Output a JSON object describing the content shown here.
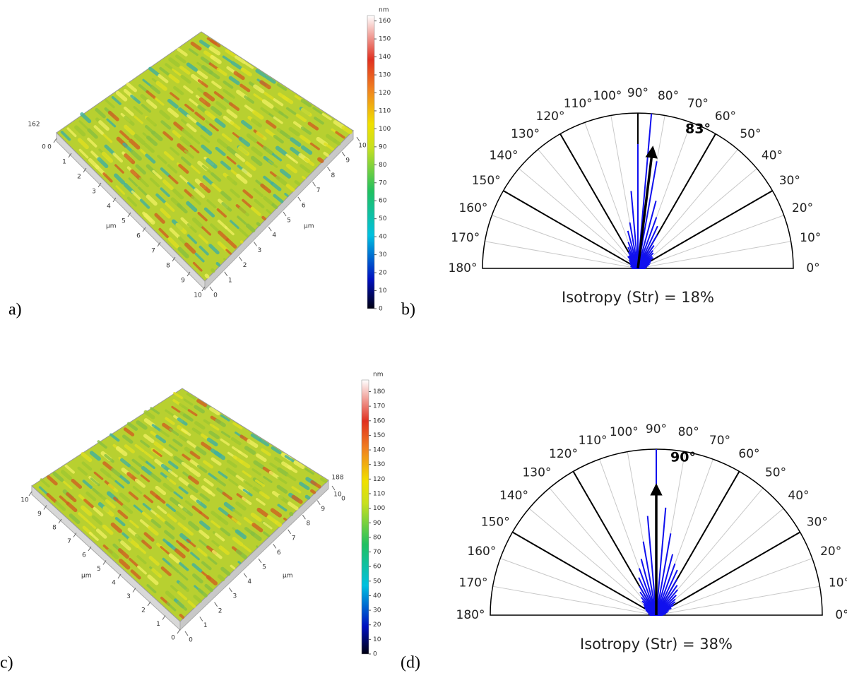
{
  "chart_data": [
    {
      "type": "surface",
      "panel_label": "a)",
      "xlabel": "µm",
      "ylabel": "µm",
      "xticks": [
        0,
        1,
        2,
        3,
        4,
        5,
        6,
        7,
        8,
        9,
        10
      ],
      "yticks": [
        0,
        1,
        2,
        3,
        4,
        5,
        6,
        7,
        8,
        9,
        10
      ],
      "zticks": [
        0,
        162
      ],
      "colorbar_label": "nm",
      "colorbar_lim": [
        0,
        163
      ],
      "colorbar_ticks": [
        0,
        10,
        20,
        30,
        40,
        50,
        60,
        70,
        80,
        90,
        100,
        110,
        120,
        130,
        140,
        150,
        160
      ]
    },
    {
      "type": "polar",
      "panel_label": "b)",
      "color": "#1010ee",
      "thetalim": [
        0,
        180
      ],
      "rlim": [
        0,
        1
      ],
      "thetaticks": [
        {
          "value": 0,
          "label": "0°"
        },
        {
          "value": 10,
          "label": "10°"
        },
        {
          "value": 20,
          "label": "20°"
        },
        {
          "value": 30,
          "label": "30°"
        },
        {
          "value": 40,
          "label": "40°"
        },
        {
          "value": 50,
          "label": "50°"
        },
        {
          "value": 60,
          "label": "60°"
        },
        {
          "value": 70,
          "label": "70°"
        },
        {
          "value": 80,
          "label": "80°"
        },
        {
          "value": 90,
          "label": "90°"
        },
        {
          "value": 100,
          "label": "100°"
        },
        {
          "value": 110,
          "label": "110°"
        },
        {
          "value": 120,
          "label": "120°"
        },
        {
          "value": 130,
          "label": "130°"
        },
        {
          "value": 140,
          "label": "140°"
        },
        {
          "value": 150,
          "label": "150°"
        },
        {
          "value": 160,
          "label": "160°"
        },
        {
          "value": 170,
          "label": "170°"
        },
        {
          "value": 180,
          "label": "180°"
        }
      ],
      "angles": [
        0,
        5,
        10,
        15,
        20,
        25,
        30,
        35,
        40,
        45,
        50,
        55,
        60,
        65,
        70,
        75,
        80,
        85,
        90,
        95,
        100,
        105,
        110,
        115,
        120,
        125,
        130,
        135,
        140,
        145,
        150,
        155,
        160,
        165,
        170,
        175,
        180
      ],
      "values": [
        0.05,
        0.05,
        0.06,
        0.07,
        0.08,
        0.09,
        0.1,
        0.12,
        0.12,
        0.14,
        0.15,
        0.18,
        0.25,
        0.3,
        0.35,
        0.45,
        0.7,
        1.0,
        0.8,
        0.5,
        0.3,
        0.25,
        0.18,
        0.15,
        0.12,
        0.1,
        0.1,
        0.08,
        0.07,
        0.06,
        0.06,
        0.05,
        0.05,
        0.05,
        0.04,
        0.04,
        0.04
      ],
      "annotation": {
        "value": 83,
        "label": "83°"
      },
      "caption": "Isotropy (Str) = 18%"
    },
    {
      "type": "surface",
      "panel_label": "c)",
      "xlabel": "µm",
      "ylabel": "µm",
      "xticks": [
        0,
        1,
        2,
        3,
        4,
        5,
        6,
        7,
        8,
        9,
        10
      ],
      "yticks": [
        0,
        1,
        2,
        3,
        4,
        5,
        6,
        7,
        8,
        9,
        10
      ],
      "zticks": [
        0,
        188
      ],
      "colorbar_label": "nm",
      "colorbar_lim": [
        0,
        188
      ],
      "colorbar_ticks": [
        0,
        10,
        20,
        30,
        40,
        50,
        60,
        70,
        80,
        90,
        100,
        110,
        120,
        130,
        140,
        150,
        160,
        170,
        180
      ]
    },
    {
      "type": "polar",
      "panel_label": "(d)",
      "color": "#1010ee",
      "thetalim": [
        0,
        180
      ],
      "rlim": [
        0,
        1
      ],
      "thetaticks": [
        {
          "value": 0,
          "label": "0°"
        },
        {
          "value": 10,
          "label": "10°"
        },
        {
          "value": 20,
          "label": "20°"
        },
        {
          "value": 30,
          "label": "30°"
        },
        {
          "value": 40,
          "label": "40°"
        },
        {
          "value": 50,
          "label": "50°"
        },
        {
          "value": 60,
          "label": "60°"
        },
        {
          "value": 70,
          "label": "70°"
        },
        {
          "value": 80,
          "label": "80°"
        },
        {
          "value": 90,
          "label": "90°"
        },
        {
          "value": 100,
          "label": "100°"
        },
        {
          "value": 110,
          "label": "110°"
        },
        {
          "value": 120,
          "label": "120°"
        },
        {
          "value": 130,
          "label": "130°"
        },
        {
          "value": 140,
          "label": "140°"
        },
        {
          "value": 150,
          "label": "150°"
        },
        {
          "value": 160,
          "label": "160°"
        },
        {
          "value": 170,
          "label": "170°"
        },
        {
          "value": 180,
          "label": "180°"
        }
      ],
      "angles": [
        0,
        5,
        10,
        15,
        20,
        25,
        30,
        35,
        40,
        45,
        50,
        55,
        60,
        65,
        70,
        75,
        80,
        85,
        90,
        95,
        100,
        105,
        110,
        115,
        120,
        125,
        130,
        135,
        140,
        145,
        150,
        155,
        160,
        165,
        170,
        175,
        180
      ],
      "values": [
        0.04,
        0.05,
        0.06,
        0.07,
        0.08,
        0.1,
        0.12,
        0.14,
        0.15,
        0.17,
        0.2,
        0.22,
        0.25,
        0.3,
        0.33,
        0.38,
        0.5,
        0.65,
        1.0,
        0.6,
        0.45,
        0.35,
        0.3,
        0.25,
        0.2,
        0.17,
        0.14,
        0.12,
        0.1,
        0.09,
        0.08,
        0.07,
        0.06,
        0.05,
        0.05,
        0.04,
        0.04
      ],
      "annotation": {
        "value": 90,
        "label": "90°"
      },
      "caption": "Isotropy (Str) = 38%"
    }
  ]
}
